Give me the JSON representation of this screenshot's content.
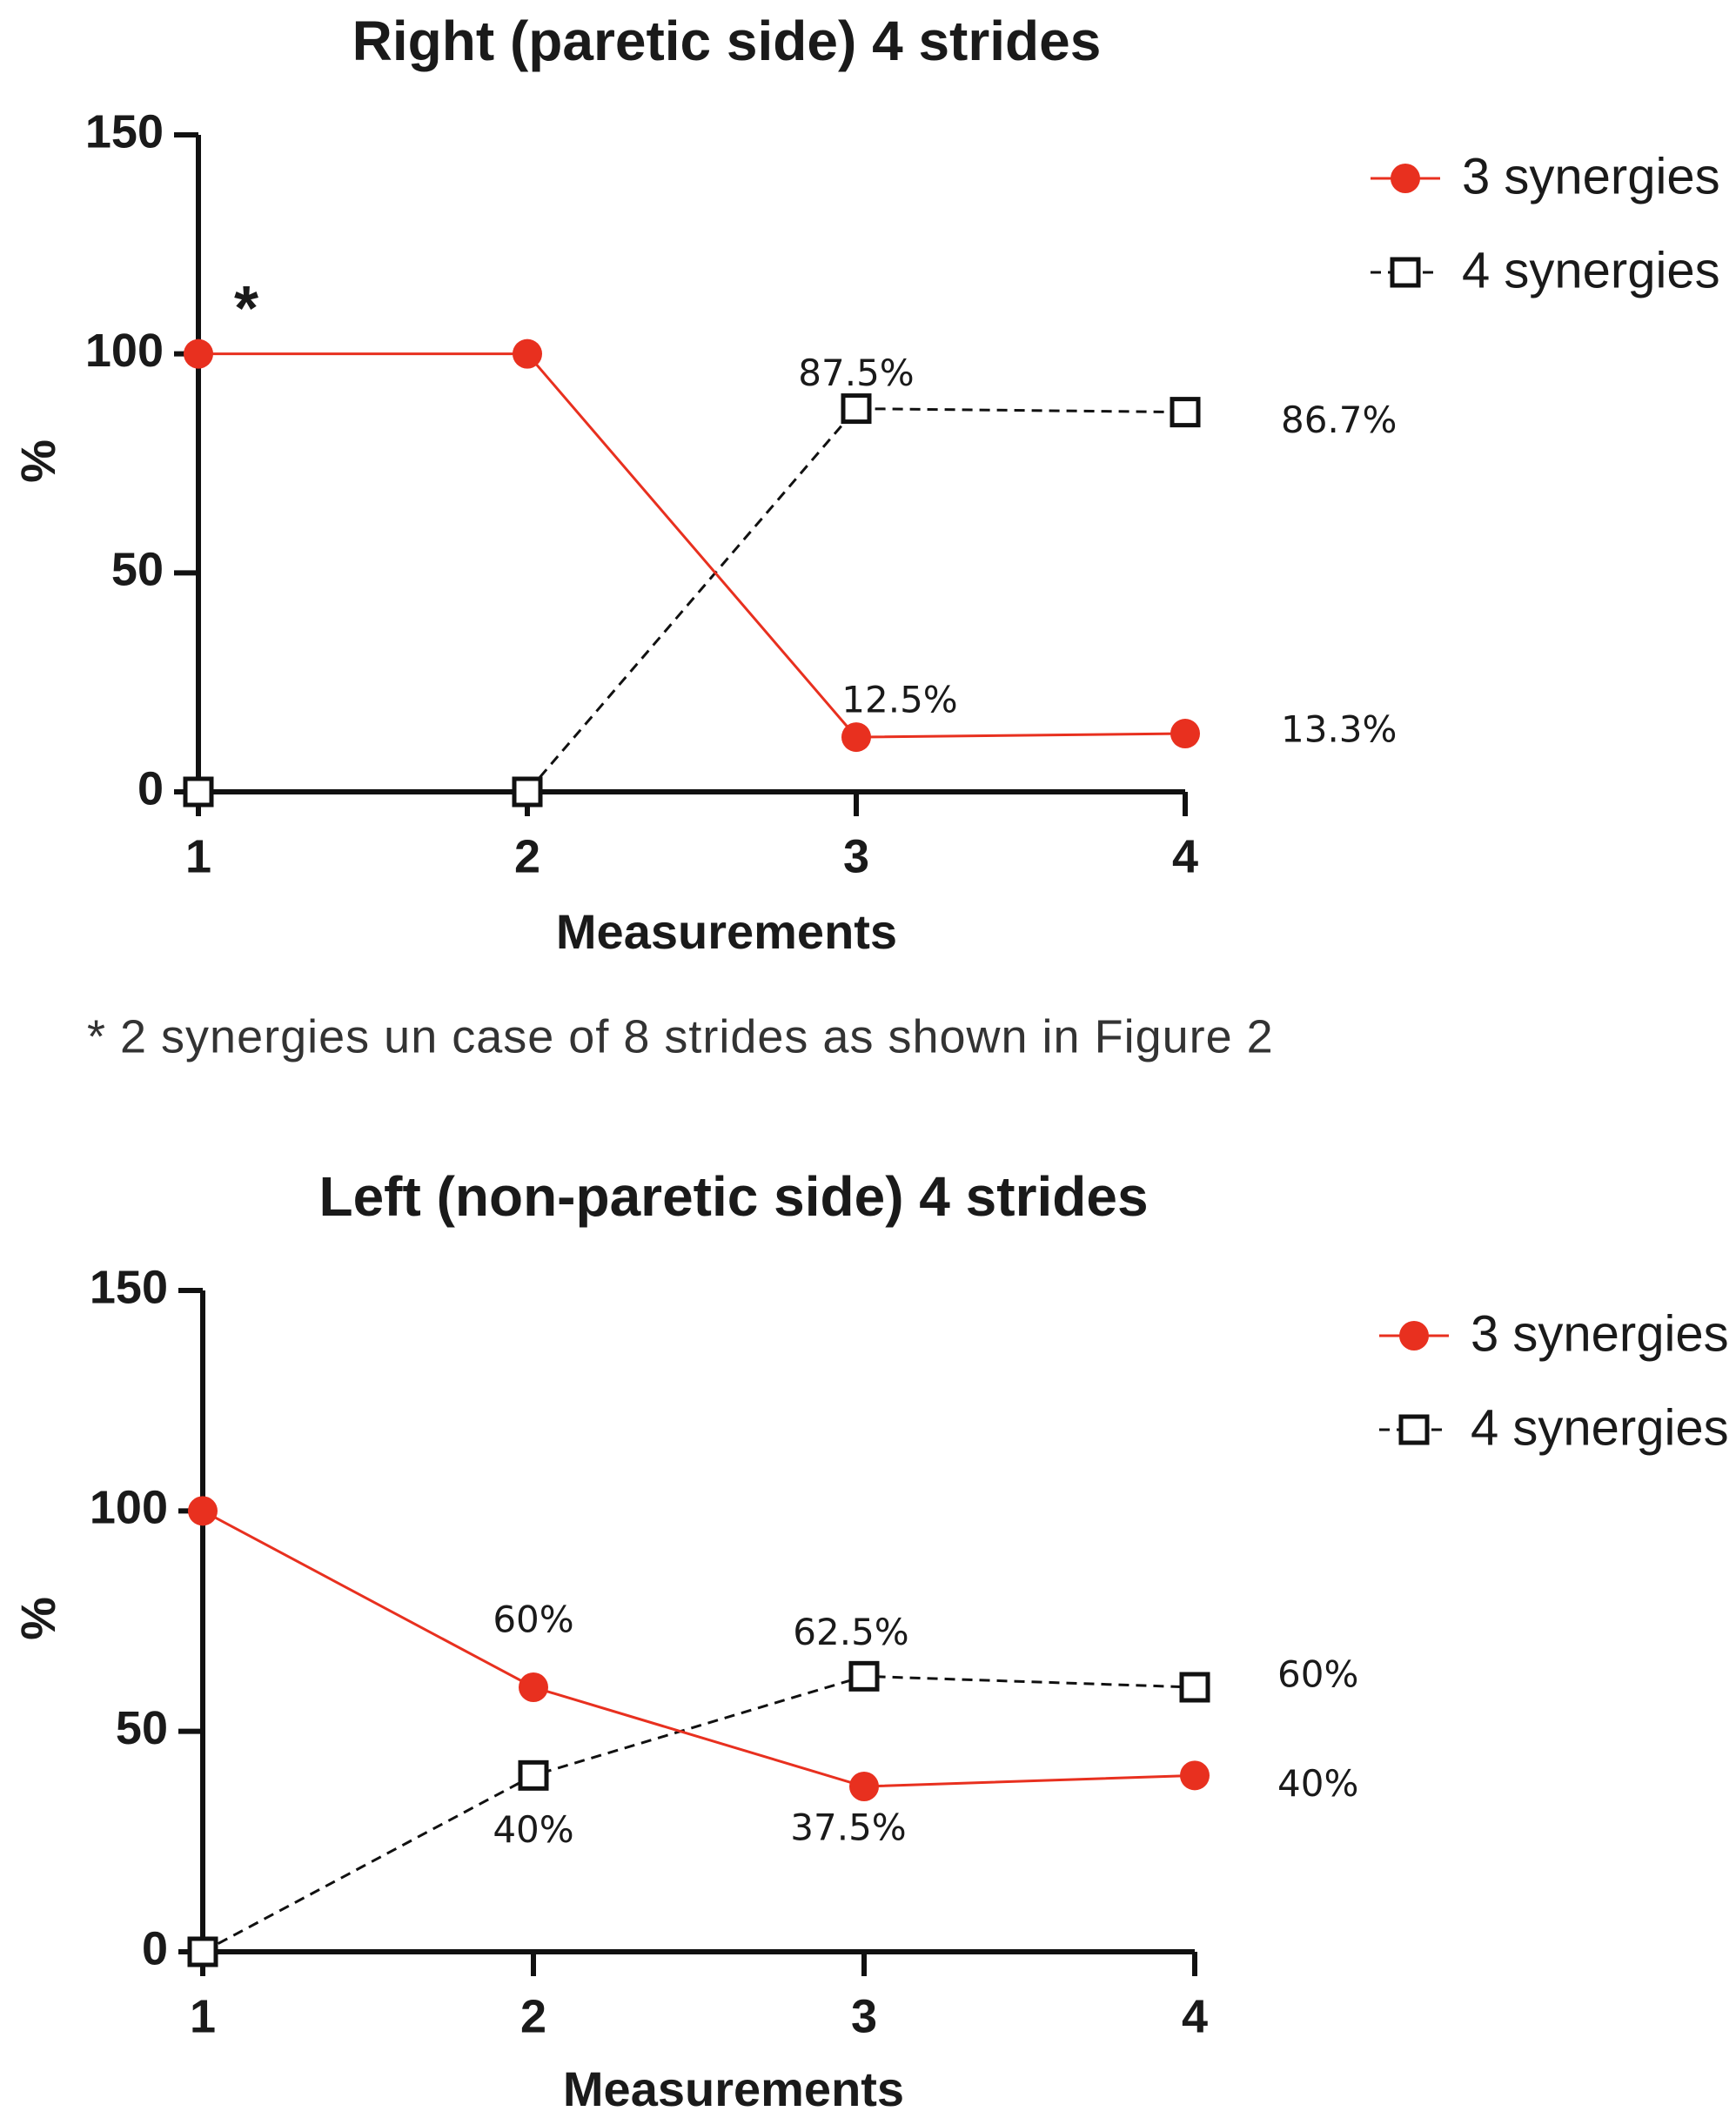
{
  "chart_data": [
    {
      "type": "line",
      "title": "Right (paretic side) 4 strides",
      "xlabel": "Measurements",
      "ylabel": "%",
      "ylim": [
        0,
        150
      ],
      "yticks": [
        "0",
        "50",
        "100",
        "150"
      ],
      "categories": [
        "1",
        "2",
        "3",
        "4"
      ],
      "legend_position": "top-right",
      "series": [
        {
          "name": "3 synergies",
          "marker": "filled-circle",
          "line_style": "solid",
          "color": "#e8301f",
          "values": [
            100,
            100,
            12.5,
            13.3
          ],
          "point_labels": [
            "",
            "",
            "12.5%",
            "13.3%"
          ]
        },
        {
          "name": "4 synergies",
          "marker": "open-square",
          "line_style": "dashed",
          "color": "#111111",
          "values": [
            0,
            0,
            87.5,
            86.7
          ],
          "point_labels": [
            "",
            "",
            "87.5%",
            "86.7%"
          ]
        }
      ],
      "annotations": [
        {
          "text": "*",
          "x": "1",
          "y": 100
        }
      ],
      "footnote": "* 2 synergies un case of 8 strides as shown in Figure 2"
    },
    {
      "type": "line",
      "title": "Left (non-paretic side) 4 strides",
      "xlabel": "Measurements",
      "ylabel": "%",
      "ylim": [
        0,
        150
      ],
      "yticks": [
        "0",
        "50",
        "100",
        "150"
      ],
      "categories": [
        "1",
        "2",
        "3",
        "4"
      ],
      "legend_position": "top-right",
      "series": [
        {
          "name": "3 synergies",
          "marker": "filled-circle",
          "line_style": "solid",
          "color": "#e8301f",
          "values": [
            100,
            60,
            37.5,
            40
          ],
          "point_labels": [
            "",
            "60%",
            "37.5%",
            "40%"
          ]
        },
        {
          "name": "4 synergies",
          "marker": "open-square",
          "line_style": "dashed",
          "color": "#111111",
          "values": [
            0,
            40,
            62.5,
            60
          ],
          "point_labels": [
            "",
            "40%",
            "62.5%",
            "60%"
          ]
        }
      ],
      "annotations": []
    }
  ]
}
